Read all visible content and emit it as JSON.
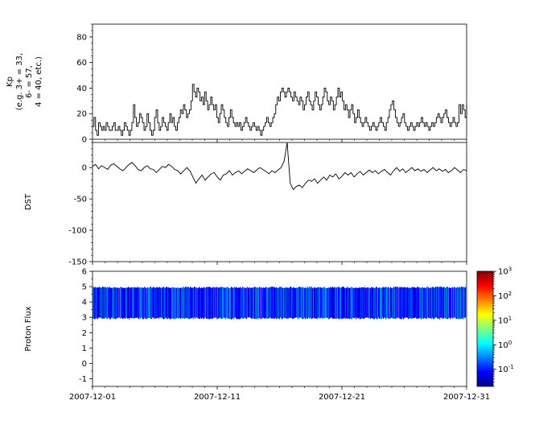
{
  "figure": {
    "background": "#ffffff",
    "axis_color": "#000000",
    "x_tick_labels": [
      "2007-12-01",
      "2007-12-11",
      "2007-12-21",
      "2007-12-31"
    ],
    "x_tick_days": [
      0,
      10,
      20,
      30
    ],
    "x_range_days": [
      0,
      30
    ]
  },
  "chart_data": [
    {
      "id": "kp",
      "type": "line",
      "ylabel_lines": [
        "Kp",
        "(e.g. 3+ = 33,",
        "6- = 57,",
        "4 = 40, etc.)"
      ],
      "ylim": [
        0,
        90
      ],
      "yticks": [
        0,
        20,
        40,
        60,
        80
      ],
      "yminor_step": 5,
      "line_color": "#000000",
      "step": true,
      "sample_interval_hours": 3,
      "values": [
        10,
        17,
        7,
        3,
        13,
        10,
        7,
        10,
        7,
        13,
        10,
        7,
        7,
        10,
        13,
        7,
        7,
        10,
        7,
        3,
        7,
        13,
        10,
        7,
        3,
        7,
        13,
        27,
        17,
        10,
        13,
        20,
        17,
        13,
        7,
        10,
        20,
        13,
        7,
        3,
        7,
        17,
        23,
        13,
        7,
        10,
        17,
        13,
        10,
        7,
        13,
        20,
        13,
        17,
        10,
        7,
        13,
        17,
        23,
        20,
        27,
        23,
        17,
        20,
        23,
        30,
        43,
        37,
        33,
        40,
        37,
        30,
        33,
        27,
        37,
        30,
        23,
        27,
        33,
        27,
        23,
        27,
        17,
        13,
        20,
        27,
        23,
        17,
        13,
        10,
        17,
        23,
        17,
        13,
        10,
        13,
        10,
        13,
        7,
        10,
        13,
        17,
        13,
        10,
        7,
        10,
        13,
        10,
        7,
        10,
        7,
        3,
        7,
        10,
        13,
        17,
        13,
        10,
        13,
        17,
        20,
        27,
        33,
        30,
        37,
        40,
        37,
        33,
        37,
        40,
        37,
        33,
        30,
        37,
        33,
        30,
        27,
        33,
        30,
        23,
        27,
        33,
        37,
        30,
        27,
        23,
        30,
        37,
        33,
        27,
        23,
        27,
        33,
        40,
        37,
        30,
        27,
        33,
        30,
        23,
        27,
        33,
        40,
        33,
        37,
        30,
        23,
        27,
        23,
        17,
        23,
        27,
        20,
        13,
        17,
        23,
        17,
        13,
        10,
        13,
        17,
        13,
        10,
        7,
        10,
        13,
        10,
        7,
        10,
        13,
        17,
        13,
        10,
        7,
        13,
        17,
        23,
        27,
        30,
        23,
        17,
        13,
        10,
        13,
        17,
        20,
        13,
        10,
        7,
        10,
        13,
        10,
        7,
        10,
        13,
        10,
        13,
        17,
        13,
        10,
        13,
        10,
        7,
        10,
        13,
        10,
        13,
        17,
        20,
        17,
        13,
        17,
        20,
        23,
        17,
        13,
        10,
        13,
        17,
        13,
        10,
        13,
        27,
        20,
        27,
        23,
        17,
        27
      ]
    },
    {
      "id": "dst",
      "type": "line",
      "ylabel": "DST",
      "ylim": [
        -150,
        40
      ],
      "yticks": [
        0,
        -50,
        -100,
        -150
      ],
      "yminor_step": 10,
      "line_color": "#000000",
      "step": false,
      "sample_interval_hours": 6,
      "values": [
        2,
        5,
        -2,
        3,
        0,
        -3,
        4,
        6,
        2,
        -2,
        -5,
        0,
        5,
        8,
        3,
        -3,
        -5,
        0,
        3,
        -2,
        -3,
        -8,
        -3,
        2,
        0,
        5,
        2,
        -3,
        -5,
        -10,
        -5,
        0,
        -5,
        -15,
        -25,
        -18,
        -12,
        -20,
        -15,
        -10,
        -8,
        -15,
        -20,
        -12,
        -10,
        -5,
        -12,
        -8,
        -5,
        -10,
        -6,
        -2,
        -5,
        -8,
        -4,
        0,
        -3,
        -6,
        -10,
        -5,
        -8,
        -4,
        0,
        10,
        40,
        -25,
        -35,
        -30,
        -28,
        -32,
        -25,
        -20,
        -22,
        -18,
        -25,
        -20,
        -15,
        -20,
        -12,
        -15,
        -10,
        -18,
        -14,
        -8,
        -12,
        -8,
        -15,
        -10,
        -6,
        -12,
        -8,
        -4,
        -8,
        -5,
        -10,
        -6,
        -3,
        -8,
        -12,
        -5,
        0,
        -6,
        -2,
        -8,
        -4,
        0,
        -5,
        -2,
        -6,
        -3,
        -8,
        -4,
        0,
        -5,
        -2,
        -6,
        -3,
        -8,
        -5,
        0,
        -4,
        -8,
        -3,
        -5
      ]
    },
    {
      "id": "proton_flux",
      "type": "heatmap",
      "ylabel": "Proton Flux",
      "ylim": [
        -1.5,
        6
      ],
      "yticks": [
        -1,
        0,
        1,
        2,
        3,
        4,
        5,
        6
      ],
      "yminor_step": 0.5,
      "band_y_range": [
        3,
        5
      ],
      "value_log10_range": [
        -1.3,
        -0.4
      ],
      "colormap": "jet",
      "colorbar": {
        "scale": "log",
        "log10_range": [
          -1.7,
          3
        ],
        "tick_exponents": [
          -1,
          0,
          1,
          2,
          3
        ],
        "tick_base": "10"
      }
    }
  ]
}
